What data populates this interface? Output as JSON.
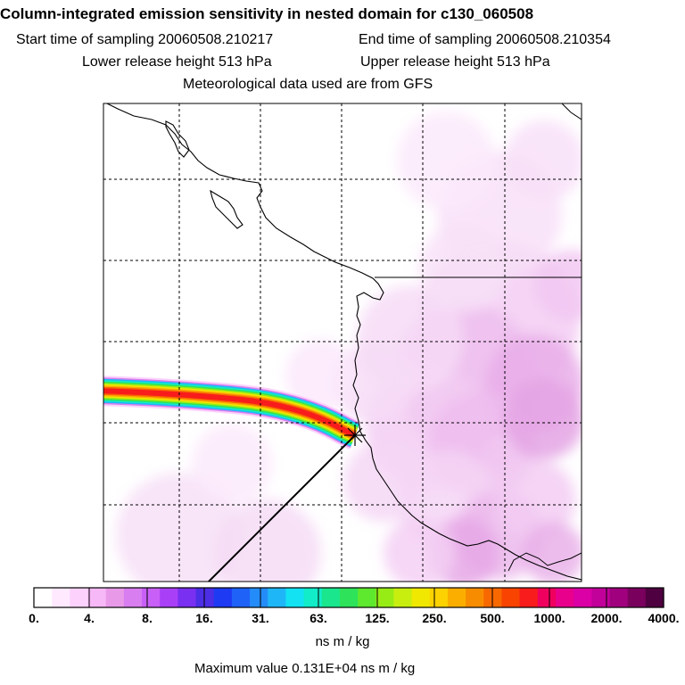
{
  "header": {
    "title": "Column-integrated emission sensitivity in nested domain for c130_060508",
    "start_time": "Start time of sampling 20060508.210217",
    "end_time": "End time of sampling 20060508.210354",
    "lower_release": "Lower release height  513 hPa",
    "upper_release": "Upper release height  513 hPa",
    "met_data": "Meteorological data used are from GFS"
  },
  "colorbar": {
    "tick_labels": [
      "0.",
      "4.",
      "8.",
      "16.",
      "31.",
      "63.",
      "125.",
      "250.",
      "500.",
      "1000.",
      "2000.",
      "4000."
    ],
    "colors": [
      "#ffffff",
      "#ffe9ff",
      "#fcd2fc",
      "#f7b8f7",
      "#e89ae8",
      "#d87ef0",
      "#c860f8",
      "#a940f8",
      "#7a30f0",
      "#4b2ee6",
      "#1e3af2",
      "#1f62f8",
      "#238cf8",
      "#1fb6f8",
      "#12e2f2",
      "#12ecc8",
      "#1ae68e",
      "#2ee25a",
      "#5ee82e",
      "#98ec16",
      "#c8ee10",
      "#f0e800",
      "#fcd200",
      "#fcae00",
      "#f88c00",
      "#f86800",
      "#f84400",
      "#f81c1c",
      "#f0005e",
      "#e8008c",
      "#da00a6",
      "#c2009a",
      "#a0007e",
      "#7a005e",
      "#4e0040"
    ],
    "units": "ns m / kg"
  },
  "footer": {
    "max_value": "Maximum value  0.131E+04 ns m / kg"
  },
  "map": {
    "release_marker": "release-point",
    "plume_colors": [
      "#f81c1c",
      "#f86800",
      "#fcae00",
      "#f0e800",
      "#98ec16",
      "#2ee25a",
      "#12ecc8",
      "#1fb6f8",
      "#d87ef0",
      "#fcd2fc"
    ]
  }
}
